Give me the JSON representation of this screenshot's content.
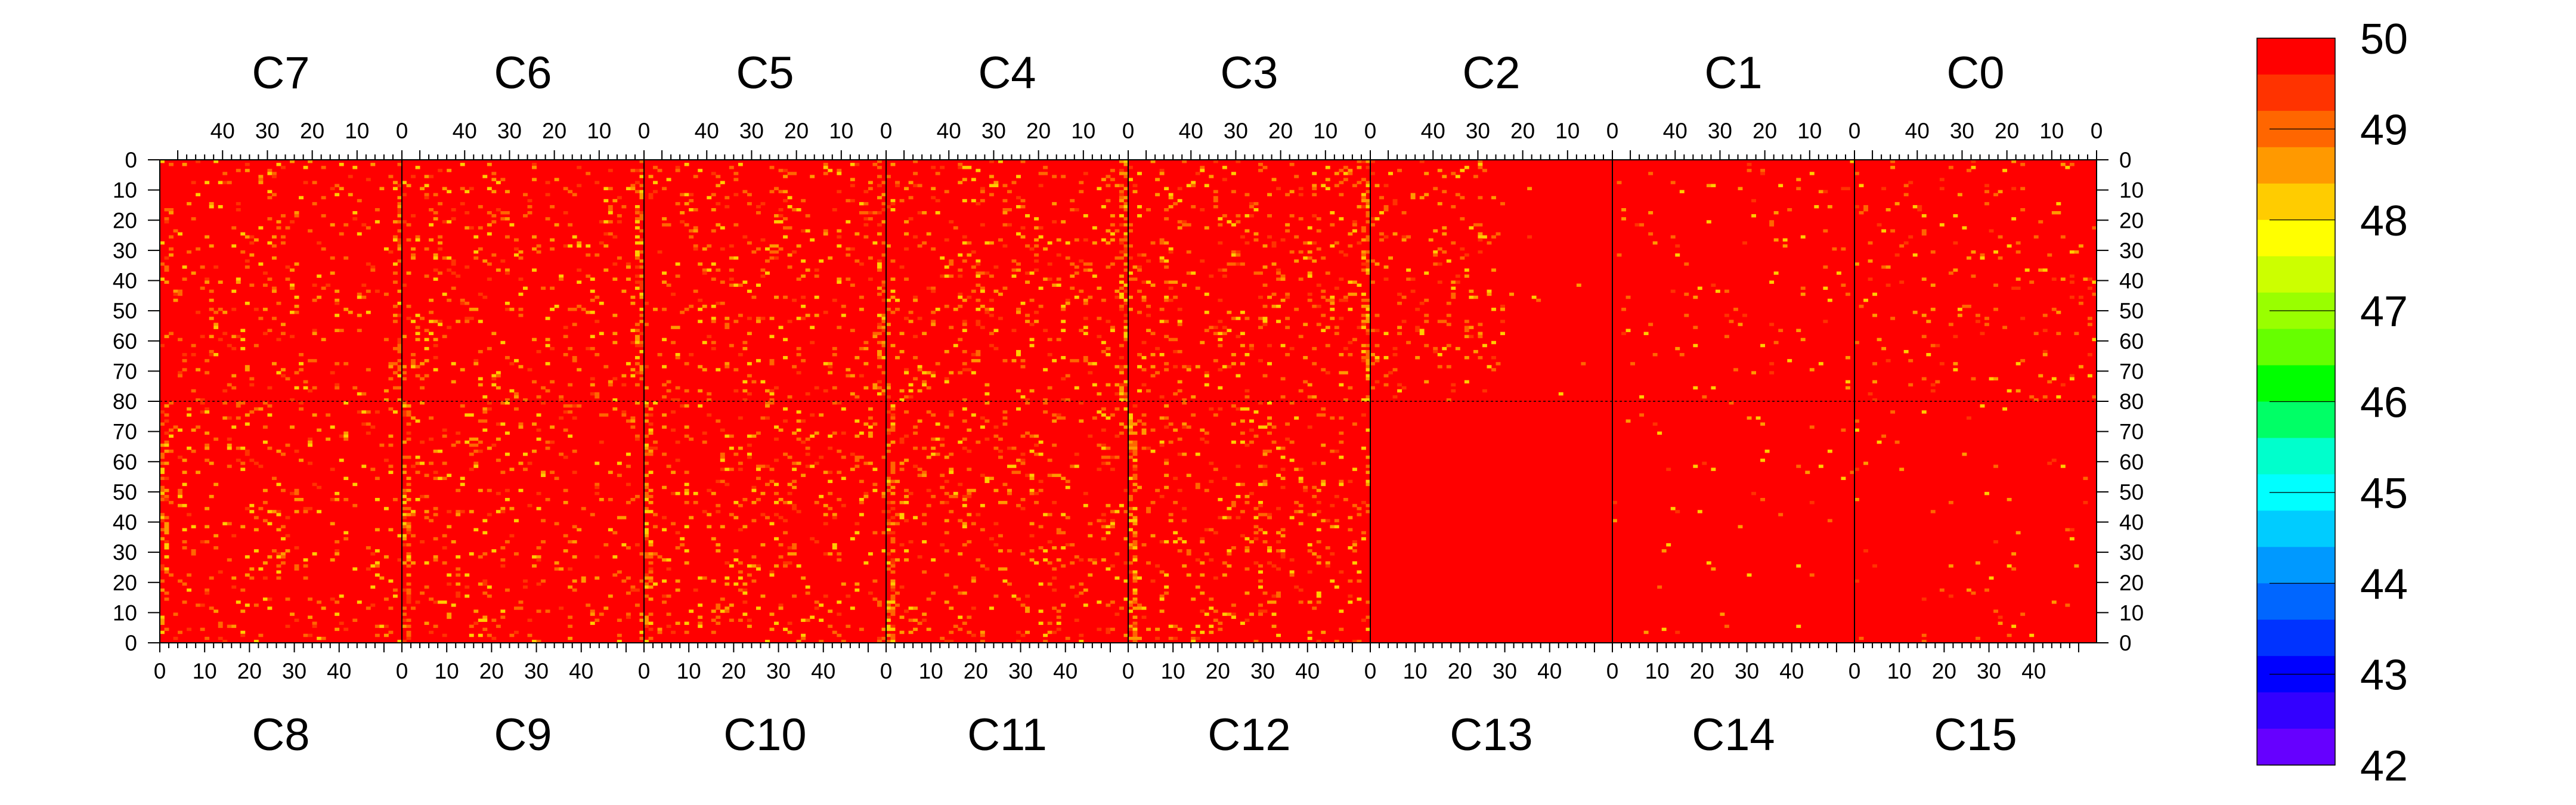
{
  "chart_data": {
    "type": "heatmap",
    "title": "",
    "top_chips": [
      "C7",
      "C6",
      "C5",
      "C4",
      "C3",
      "C2",
      "C1",
      "C0"
    ],
    "bottom_chips": [
      "C8",
      "C9",
      "C10",
      "C11",
      "C12",
      "C13",
      "C14",
      "C15"
    ],
    "chip_columns": 54,
    "rows_per_half": 80,
    "top_x_tick_labels": [
      "40",
      "30",
      "20",
      "10",
      "0"
    ],
    "bottom_x_tick_labels": [
      "0",
      "10",
      "20",
      "30",
      "40"
    ],
    "y_tick_labels": [
      "0",
      "10",
      "20",
      "30",
      "40",
      "50",
      "60",
      "70",
      "80",
      "70",
      "60",
      "50",
      "40",
      "30",
      "20",
      "10",
      "0"
    ],
    "zlim": [
      42,
      50
    ],
    "colorbar_tick_labels": [
      "50",
      "49",
      "48",
      "47",
      "46",
      "45",
      "44",
      "43",
      "42"
    ],
    "colorbar_colors": [
      "#ff0000",
      "#ff3300",
      "#ff6600",
      "#ff9900",
      "#ffcc00",
      "#ffff00",
      "#ccff00",
      "#99ff00",
      "#66ff00",
      "#00ff00",
      "#00ff66",
      "#00ffcc",
      "#00ffff",
      "#00ccff",
      "#0099ff",
      "#0066ff",
      "#0033ff",
      "#0000ff",
      "#3300ff",
      "#6600ff"
    ],
    "background_value": 50,
    "chip_noise_fraction": {
      "C7": 0.06,
      "C6": 0.075,
      "C5": 0.075,
      "C4": 0.085,
      "C3": 0.085,
      "C2": 0.06,
      "C1": 0.02,
      "C0": 0.045,
      "C8": 0.06,
      "C9": 0.075,
      "C10": 0.08,
      "C11": 0.085,
      "C12": 0.085,
      "C13": 0.0,
      "C14": 0.012,
      "C15": 0.014
    },
    "colors": {
      "grid_line": "#000000",
      "background": "#ff0000"
    }
  }
}
